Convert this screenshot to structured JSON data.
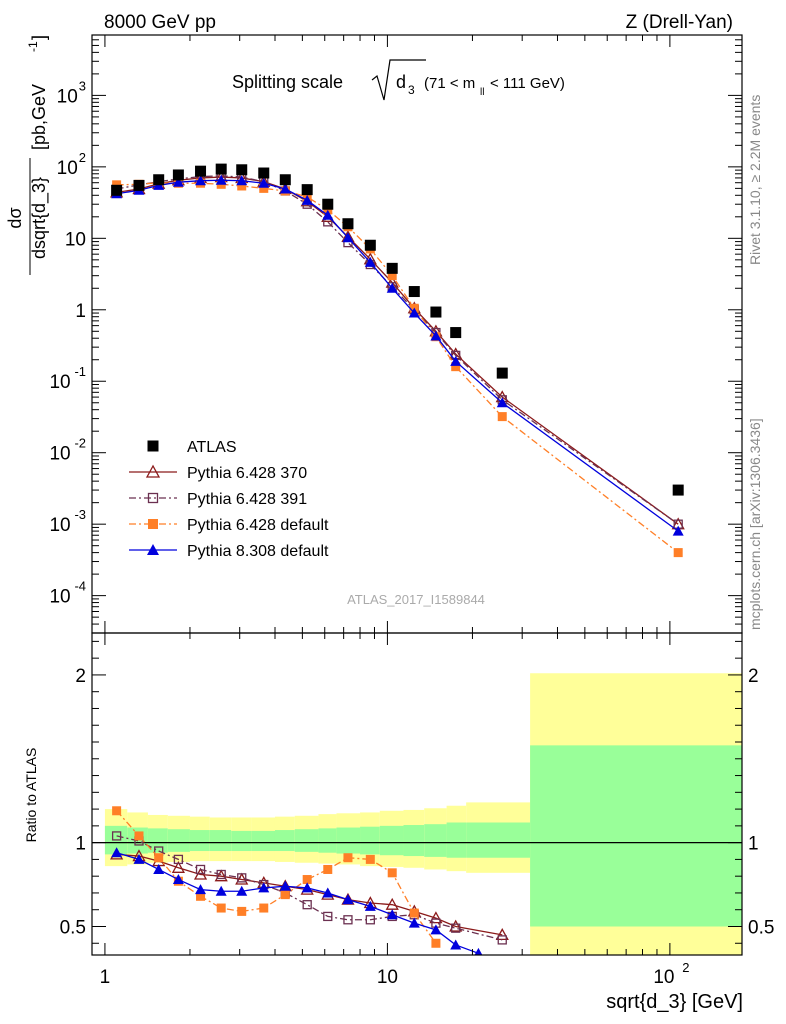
{
  "header": {
    "left": "8000 GeV pp",
    "right": "Z (Drell-Yan)"
  },
  "plot_title": {
    "main": "Splitting scale",
    "symbol": "d",
    "symbol_sub": "3",
    "range_open": "(71 < m",
    "range_sub": "ll",
    "range_close": " < 111 GeV)"
  },
  "side_labels": {
    "rivet": "Rivet 3.1.10, ≥ 2.2M events",
    "mcplots": "mcplots.cern.ch [arXiv:1306.3436]"
  },
  "analysis_id": "ATLAS_2017_I1589844",
  "y_label_top": {
    "numerator": "dσ",
    "denominator": "dsqrt{d_3}",
    "units": "[pb,GeV",
    "units_sup": "-1",
    "units_close": "]"
  },
  "y_label_ratio": "Ratio to ATLAS",
  "x_label": "sqrt{d_3} [GeV]",
  "legend": [
    {
      "label": "ATLAS",
      "color": "#000000",
      "marker": "filled-square",
      "line": "none"
    },
    {
      "label": "Pythia 6.428 370",
      "color": "#8b1a1a",
      "marker": "open-triangle",
      "line": "solid"
    },
    {
      "label": "Pythia 6.428 391",
      "color": "#6b3050",
      "marker": "open-square",
      "line": "dashdot"
    },
    {
      "label": "Pythia 6.428 default",
      "color": "#ff7f27",
      "marker": "filled-square",
      "line": "dashdot"
    },
    {
      "label": "Pythia 8.308 default",
      "color": "#0000dd",
      "marker": "filled-triangle",
      "line": "solid"
    }
  ],
  "chart_data": {
    "type": "scatter",
    "x_scale": "log",
    "xlim": [
      0.9,
      180
    ],
    "x_ticks": [
      "1",
      "10",
      "10^2"
    ],
    "main_panel": {
      "y_scale": "log",
      "ylim": [
        3e-05,
        7000
      ],
      "y_ticks": [
        "10^-4",
        "10^-3",
        "10^-2",
        "10^-1",
        "1",
        "10",
        "10^2",
        "10^3"
      ],
      "series": [
        {
          "name": "ATLAS",
          "x": [
            1.1,
            1.32,
            1.55,
            1.82,
            2.18,
            2.58,
            3.05,
            3.65,
            4.35,
            5.2,
            6.15,
            7.25,
            8.7,
            10.4,
            12.45,
            14.85,
            17.45,
            25.5,
            107
          ],
          "y": [
            47,
            55,
            66,
            77,
            87,
            93,
            91,
            82,
            66,
            48,
            30,
            16,
            8,
            3.8,
            1.8,
            0.93,
            0.48,
            0.13,
            0.003
          ]
        },
        {
          "name": "Pythia 6.428 370",
          "x": [
            1.1,
            1.32,
            1.55,
            1.82,
            2.18,
            2.58,
            3.05,
            3.65,
            4.35,
            5.2,
            6.15,
            7.25,
            8.7,
            10.4,
            12.45,
            14.85,
            17.45,
            25.5,
            107
          ],
          "y": [
            44,
            49,
            58,
            65,
            70,
            72,
            70,
            62,
            49,
            33,
            20,
            10.5,
            5.1,
            2.4,
            1.05,
            0.5,
            0.24,
            0.06,
            0.001
          ]
        },
        {
          "name": "Pythia 6.428 391",
          "x": [
            1.1,
            1.32,
            1.55,
            1.82,
            2.18,
            2.58,
            3.05,
            3.65,
            4.35,
            5.2,
            6.15,
            7.25,
            8.7,
            10.4,
            12.45,
            14.85,
            17.45,
            25.5,
            107
          ],
          "y": [
            49,
            56,
            62,
            68,
            73,
            75,
            72,
            62,
            46,
            30,
            17,
            8.7,
            4.3,
            2.1,
            1.0,
            0.48,
            0.23,
            0.055,
            0.001
          ]
        },
        {
          "name": "Pythia 6.428 default",
          "x": [
            1.1,
            1.32,
            1.55,
            1.82,
            2.18,
            2.58,
            3.05,
            3.65,
            4.35,
            5.2,
            6.15,
            7.25,
            8.7,
            10.4,
            12.45,
            14.85,
            17.45,
            25.5,
            107
          ],
          "y": [
            56,
            57,
            60,
            59,
            59,
            57,
            54,
            50,
            46,
            38,
            25,
            14.5,
            7.1,
            3.0,
            1.05,
            0.42,
            0.16,
            0.032,
            0.0004
          ]
        },
        {
          "name": "Pythia 8.308 default",
          "x": [
            1.1,
            1.32,
            1.55,
            1.82,
            2.18,
            2.58,
            3.05,
            3.65,
            4.35,
            5.2,
            6.15,
            7.25,
            8.7,
            10.4,
            12.45,
            14.85,
            17.45,
            25.5,
            107
          ],
          "y": [
            42,
            47,
            55,
            61,
            64,
            65,
            64,
            59,
            49,
            34,
            21,
            10.2,
            4.6,
            2.0,
            0.9,
            0.43,
            0.19,
            0.05,
            0.0008
          ]
        }
      ]
    },
    "ratio_panel": {
      "y_scale": "linear",
      "ylim": [
        0.33,
        2.25
      ],
      "y_ticks": [
        "0.5",
        "1",
        "2"
      ],
      "bin_edges": [
        1.0,
        1.2,
        1.42,
        1.67,
        2.0,
        2.35,
        2.8,
        3.3,
        4.0,
        4.7,
        5.7,
        6.6,
        8.0,
        9.4,
        11.4,
        13.5,
        16.2,
        19.0,
        32.0,
        180.0
      ],
      "band_inner": [
        [
          0.93,
          1.1
        ],
        [
          0.935,
          1.09
        ],
        [
          0.94,
          1.085
        ],
        [
          0.945,
          1.08
        ],
        [
          0.95,
          1.075
        ],
        [
          0.95,
          1.075
        ],
        [
          0.95,
          1.07
        ],
        [
          0.95,
          1.07
        ],
        [
          0.95,
          1.075
        ],
        [
          0.945,
          1.08
        ],
        [
          0.94,
          1.085
        ],
        [
          0.935,
          1.09
        ],
        [
          0.93,
          1.095
        ],
        [
          0.925,
          1.1
        ],
        [
          0.92,
          1.105
        ],
        [
          0.915,
          1.11
        ],
        [
          0.91,
          1.12
        ],
        [
          0.91,
          1.12
        ],
        [
          0.5,
          1.58
        ]
      ],
      "band_outer": [
        [
          0.86,
          1.2
        ],
        [
          0.87,
          1.18
        ],
        [
          0.88,
          1.165
        ],
        [
          0.885,
          1.16
        ],
        [
          0.89,
          1.155
        ],
        [
          0.89,
          1.15
        ],
        [
          0.89,
          1.15
        ],
        [
          0.89,
          1.15
        ],
        [
          0.885,
          1.155
        ],
        [
          0.88,
          1.16
        ],
        [
          0.875,
          1.17
        ],
        [
          0.87,
          1.175
        ],
        [
          0.86,
          1.18
        ],
        [
          0.855,
          1.19
        ],
        [
          0.85,
          1.195
        ],
        [
          0.84,
          1.205
        ],
        [
          0.83,
          1.22
        ],
        [
          0.82,
          1.24
        ],
        [
          0.31,
          2.01
        ]
      ],
      "series": [
        {
          "name": "Pythia 6.428 370",
          "x": [
            1.1,
            1.32,
            1.55,
            1.82,
            2.18,
            2.58,
            3.05,
            3.65,
            4.35,
            5.2,
            6.15,
            7.25,
            8.7,
            10.4,
            12.45,
            14.85,
            17.45,
            25.5
          ],
          "y": [
            0.93,
            0.92,
            0.89,
            0.85,
            0.81,
            0.8,
            0.78,
            0.76,
            0.74,
            0.72,
            0.69,
            0.66,
            0.64,
            0.63,
            0.59,
            0.55,
            0.5,
            0.45
          ]
        },
        {
          "name": "Pythia 6.428 391",
          "x": [
            1.1,
            1.32,
            1.55,
            1.82,
            2.18,
            2.58,
            3.05,
            3.65,
            4.35,
            5.2,
            6.15,
            7.25,
            8.7,
            10.4,
            12.45,
            14.85,
            17.45,
            25.5
          ],
          "y": [
            1.04,
            1.01,
            0.95,
            0.9,
            0.84,
            0.81,
            0.79,
            0.75,
            0.7,
            0.63,
            0.56,
            0.54,
            0.54,
            0.56,
            0.57,
            0.52,
            0.49,
            0.42
          ]
        },
        {
          "name": "Pythia 6.428 default",
          "x": [
            1.1,
            1.32,
            1.55,
            1.82,
            2.18,
            2.58,
            3.05,
            3.65,
            4.35,
            5.2,
            6.15,
            7.25,
            8.7,
            10.4,
            12.45,
            14.85
          ],
          "y": [
            1.19,
            1.04,
            0.91,
            0.77,
            0.68,
            0.61,
            0.59,
            0.61,
            0.69,
            0.78,
            0.84,
            0.91,
            0.9,
            0.82,
            0.58,
            0.4
          ]
        },
        {
          "name": "Pythia 8.308 default",
          "x": [
            1.1,
            1.32,
            1.55,
            1.82,
            2.18,
            2.58,
            3.05,
            3.65,
            4.35,
            5.2,
            6.15,
            7.25,
            8.7,
            10.4,
            12.45,
            14.85,
            17.45,
            21.0
          ],
          "y": [
            0.94,
            0.9,
            0.84,
            0.78,
            0.72,
            0.71,
            0.71,
            0.73,
            0.74,
            0.73,
            0.7,
            0.66,
            0.62,
            0.57,
            0.52,
            0.48,
            0.39,
            0.34
          ]
        }
      ]
    }
  }
}
